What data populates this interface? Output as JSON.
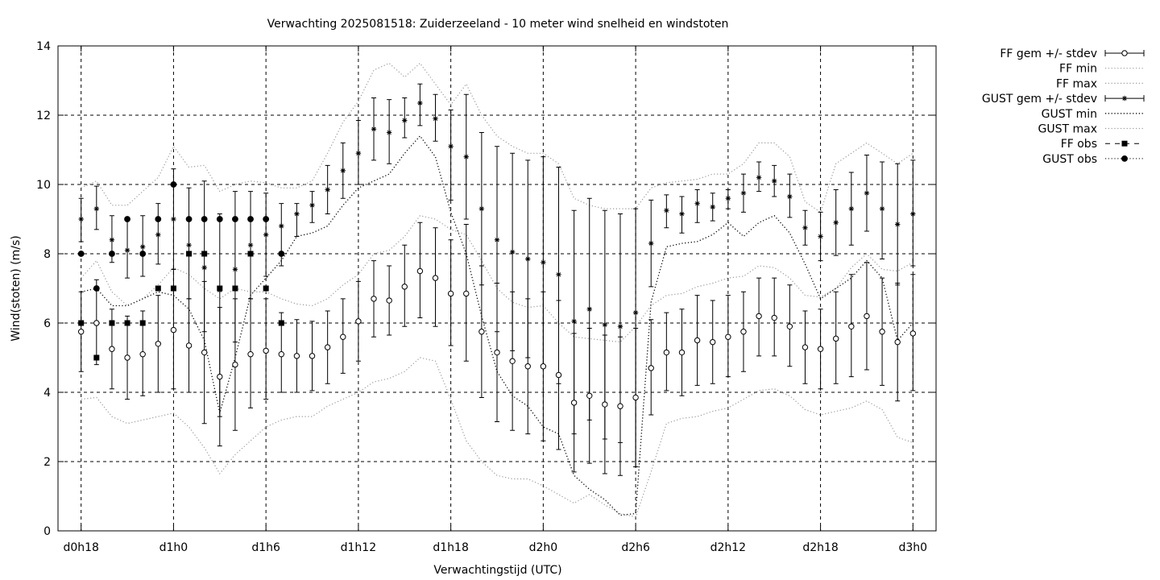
{
  "chart_data": {
    "type": "line",
    "title": "Verwachting 2025081518: Zuiderzeeland - 10 meter wind snelheid en windstoten",
    "xlabel": "Verwachtingstijd (UTC)",
    "ylabel": "Wind(stoten) (m/s)",
    "ylim": [
      0,
      14
    ],
    "yticks": [
      "0",
      "2",
      "4",
      "6",
      "8",
      "10",
      "12",
      "14"
    ],
    "xlim": [
      -1.5,
      55.5
    ],
    "xticks": [
      {
        "x": 0,
        "label": "d0h18"
      },
      {
        "x": 6,
        "label": "d1h0"
      },
      {
        "x": 12,
        "label": "d1h6"
      },
      {
        "x": 18,
        "label": "d1h12"
      },
      {
        "x": 24,
        "label": "d1h18"
      },
      {
        "x": 30,
        "label": "d2h0"
      },
      {
        "x": 36,
        "label": "d2h6"
      },
      {
        "x": 42,
        "label": "d2h12"
      },
      {
        "x": 48,
        "label": "d2h18"
      },
      {
        "x": 54,
        "label": "d3h0"
      }
    ],
    "grid": true,
    "legend_position": "outside-right",
    "legend": [
      "FF gem +/- stdev",
      "FF min",
      "FF max",
      "GUST gem +/- stdev",
      "GUST min",
      "GUST max",
      "FF obs",
      "GUST obs"
    ],
    "series": [
      {
        "key": "ff",
        "type": "errorbar",
        "marker": "circle-open",
        "x": [
          0,
          1,
          2,
          3,
          4,
          5,
          6,
          7,
          8,
          9,
          10,
          11,
          12,
          13,
          14,
          15,
          16,
          17,
          18,
          19,
          20,
          21,
          22,
          23,
          24,
          25,
          26,
          27,
          28,
          29,
          30,
          31,
          32,
          33,
          34,
          35,
          36,
          37,
          38,
          39,
          40,
          41,
          42,
          43,
          44,
          45,
          46,
          47,
          48,
          49,
          50,
          51,
          52,
          53,
          54
        ],
        "mean": [
          5.75,
          6.0,
          5.25,
          5.0,
          5.1,
          5.4,
          5.8,
          5.35,
          5.15,
          4.45,
          4.8,
          5.1,
          5.2,
          5.1,
          5.05,
          5.05,
          5.3,
          5.6,
          6.05,
          6.7,
          6.65,
          7.05,
          7.5,
          7.3,
          6.85,
          6.85,
          5.75,
          5.15,
          4.9,
          4.75,
          4.75,
          4.5,
          3.7,
          3.9,
          3.65,
          3.6,
          3.85,
          4.7,
          5.15,
          5.15,
          5.5,
          5.45,
          5.6,
          5.75,
          6.2,
          6.15,
          5.9,
          5.3,
          5.25,
          5.55,
          5.9,
          6.2,
          5.75,
          5.45,
          5.7
        ],
        "low": [
          4.6,
          4.8,
          4.1,
          3.8,
          3.9,
          4.0,
          4.1,
          4.0,
          3.1,
          2.45,
          2.9,
          3.55,
          3.8,
          4.0,
          4.0,
          4.05,
          4.25,
          4.55,
          4.9,
          5.6,
          5.65,
          5.9,
          6.15,
          5.9,
          5.35,
          4.9,
          3.85,
          3.15,
          2.9,
          2.8,
          2.6,
          2.35,
          1.7,
          1.95,
          1.65,
          1.6,
          1.85,
          3.35,
          4.05,
          3.9,
          4.2,
          4.25,
          4.45,
          4.6,
          5.05,
          5.05,
          4.75,
          4.25,
          4.1,
          4.25,
          4.45,
          4.65,
          4.2,
          3.75,
          4.05
        ],
        "high": [
          6.9,
          7.25,
          6.4,
          6.2,
          6.35,
          6.8,
          7.55,
          6.7,
          7.2,
          6.45,
          6.7,
          6.7,
          6.7,
          6.3,
          6.1,
          6.05,
          6.35,
          6.7,
          7.2,
          7.8,
          7.65,
          8.25,
          8.9,
          8.75,
          8.4,
          8.85,
          7.65,
          7.15,
          6.9,
          6.7,
          6.9,
          6.65,
          5.7,
          5.85,
          5.65,
          5.6,
          5.85,
          6.1,
          6.3,
          6.4,
          6.8,
          6.65,
          6.8,
          6.9,
          7.3,
          7.3,
          7.1,
          6.35,
          6.4,
          6.9,
          7.4,
          7.75,
          7.3,
          7.15,
          7.4
        ]
      },
      {
        "key": "ffmin",
        "type": "line",
        "style": "dotted-grey",
        "x": [
          0,
          1,
          2,
          3,
          4,
          5,
          6,
          7,
          8,
          9,
          10,
          11,
          12,
          13,
          14,
          15,
          16,
          17,
          18,
          19,
          20,
          21,
          22,
          23,
          24,
          25,
          26,
          27,
          28,
          29,
          30,
          31,
          32,
          33,
          34,
          35,
          36,
          37,
          38,
          39,
          40,
          41,
          42,
          43,
          44,
          45,
          46,
          47,
          48,
          49,
          50,
          51,
          52,
          53,
          54
        ],
        "values": [
          3.8,
          3.85,
          3.3,
          3.1,
          3.2,
          3.3,
          3.4,
          3.0,
          2.4,
          1.65,
          2.2,
          2.6,
          3.0,
          3.2,
          3.3,
          3.3,
          3.6,
          3.8,
          4.0,
          4.3,
          4.4,
          4.6,
          5.0,
          4.9,
          3.8,
          2.6,
          2.0,
          1.6,
          1.5,
          1.5,
          1.3,
          1.05,
          0.8,
          1.05,
          0.75,
          0.5,
          0.4,
          1.7,
          3.1,
          3.25,
          3.3,
          3.45,
          3.55,
          3.8,
          4.05,
          4.1,
          3.9,
          3.5,
          3.35,
          3.45,
          3.55,
          3.75,
          3.5,
          2.7,
          2.55
        ]
      },
      {
        "key": "ffmax",
        "type": "line",
        "style": "dotted-grey",
        "x": [
          0,
          1,
          2,
          3,
          4,
          5,
          6,
          7,
          8,
          9,
          10,
          11,
          12,
          13,
          14,
          15,
          16,
          17,
          18,
          19,
          20,
          21,
          22,
          23,
          24,
          25,
          26,
          27,
          28,
          29,
          30,
          31,
          32,
          33,
          34,
          35,
          36,
          37,
          38,
          39,
          40,
          41,
          42,
          43,
          44,
          45,
          46,
          47,
          48,
          49,
          50,
          51,
          52,
          53,
          54
        ],
        "values": [
          7.3,
          7.8,
          6.9,
          6.5,
          6.7,
          7.1,
          7.6,
          7.4,
          7.0,
          6.7,
          7.0,
          6.9,
          6.9,
          6.7,
          6.55,
          6.5,
          6.7,
          7.1,
          7.4,
          8.0,
          8.1,
          8.5,
          9.1,
          9.0,
          8.7,
          8.55,
          7.8,
          7.0,
          6.6,
          6.45,
          6.5,
          6.0,
          5.6,
          5.55,
          5.5,
          5.45,
          5.9,
          6.5,
          6.8,
          6.85,
          7.05,
          7.15,
          7.3,
          7.35,
          7.65,
          7.6,
          7.3,
          6.8,
          6.75,
          7.0,
          7.6,
          8.0,
          7.55,
          7.5,
          7.75
        ]
      },
      {
        "key": "gust",
        "type": "errorbar",
        "marker": "star",
        "x": [
          0,
          1,
          2,
          3,
          4,
          5,
          6,
          7,
          8,
          9,
          10,
          11,
          12,
          13,
          14,
          15,
          16,
          17,
          18,
          19,
          20,
          21,
          22,
          23,
          24,
          25,
          26,
          27,
          28,
          29,
          30,
          31,
          32,
          33,
          34,
          35,
          36,
          37,
          38,
          39,
          40,
          41,
          42,
          43,
          44,
          45,
          46,
          47,
          48,
          49,
          50,
          51,
          52,
          53,
          54
        ],
        "mean": [
          9.0,
          9.3,
          8.4,
          8.1,
          8.2,
          8.55,
          9.0,
          8.25,
          7.6,
          6.95,
          7.55,
          8.25,
          8.55,
          8.8,
          9.15,
          9.4,
          9.85,
          10.4,
          10.9,
          11.6,
          11.5,
          11.85,
          12.35,
          11.9,
          11.1,
          10.8,
          9.3,
          8.4,
          8.05,
          7.85,
          7.75,
          7.4,
          6.05,
          6.4,
          5.95,
          5.9,
          6.3,
          8.3,
          9.25,
          9.15,
          9.45,
          9.35,
          9.6,
          9.75,
          10.2,
          10.1,
          9.65,
          8.75,
          8.5,
          8.9,
          9.3,
          9.75,
          9.3,
          8.85,
          9.15
        ],
        "low": [
          8.35,
          8.7,
          7.75,
          7.3,
          7.35,
          7.7,
          7.55,
          6.7,
          5.75,
          3.3,
          5.45,
          6.7,
          7.35,
          7.65,
          8.5,
          8.9,
          9.15,
          9.6,
          10.0,
          10.7,
          10.6,
          11.35,
          11.7,
          11.25,
          9.55,
          9.0,
          7.1,
          5.75,
          5.2,
          5.0,
          4.7,
          4.25,
          2.8,
          3.2,
          2.65,
          2.55,
          1.85,
          7.05,
          8.75,
          8.6,
          8.9,
          8.95,
          9.3,
          9.2,
          9.8,
          9.65,
          9.05,
          8.25,
          7.8,
          7.95,
          8.25,
          8.65,
          7.85,
          7.1,
          7.65
        ],
        "high": [
          9.6,
          9.95,
          9.1,
          8.95,
          9.1,
          9.45,
          10.45,
          9.9,
          10.1,
          9.15,
          9.8,
          9.8,
          9.75,
          9.45,
          9.45,
          9.8,
          10.55,
          11.2,
          11.85,
          12.5,
          12.45,
          12.5,
          12.9,
          12.6,
          12.15,
          12.6,
          11.5,
          11.1,
          10.9,
          10.7,
          10.8,
          10.5,
          9.25,
          9.6,
          9.25,
          9.15,
          9.3,
          9.55,
          9.7,
          9.65,
          9.85,
          9.75,
          9.85,
          10.3,
          10.65,
          10.55,
          10.3,
          9.25,
          9.2,
          9.85,
          10.35,
          10.85,
          10.65,
          10.6,
          10.7
        ]
      },
      {
        "key": "gustmin",
        "type": "line",
        "style": "dotted-black",
        "x": [
          0,
          1,
          2,
          3,
          4,
          5,
          6,
          7,
          8,
          9,
          10,
          11,
          12,
          13,
          14,
          15,
          16,
          17,
          18,
          19,
          20,
          21,
          22,
          23,
          24,
          25,
          26,
          27,
          28,
          29,
          30,
          31,
          32,
          33,
          34,
          35,
          36,
          37,
          38,
          39,
          40,
          41,
          42,
          43,
          44,
          45,
          46,
          47,
          48,
          49,
          50,
          51,
          52,
          53,
          54
        ],
        "values": [
          6.9,
          7.0,
          6.5,
          6.5,
          6.7,
          6.9,
          6.8,
          6.4,
          5.5,
          3.4,
          5.0,
          6.8,
          7.3,
          7.8,
          8.5,
          8.6,
          8.8,
          9.4,
          9.9,
          10.1,
          10.3,
          10.9,
          11.4,
          10.8,
          9.2,
          8.0,
          6.2,
          4.6,
          3.9,
          3.6,
          3.0,
          2.8,
          1.6,
          1.2,
          0.9,
          0.45,
          0.5,
          6.6,
          8.2,
          8.3,
          8.35,
          8.55,
          8.9,
          8.5,
          8.9,
          9.1,
          8.6,
          7.7,
          6.7,
          7.0,
          7.3,
          7.8,
          7.3,
          5.5,
          6.0
        ]
      },
      {
        "key": "gustmax",
        "type": "line",
        "style": "dotted-grey",
        "x": [
          0,
          1,
          2,
          3,
          4,
          5,
          6,
          7,
          8,
          9,
          10,
          11,
          12,
          13,
          14,
          15,
          16,
          17,
          18,
          19,
          20,
          21,
          22,
          23,
          24,
          25,
          26,
          27,
          28,
          29,
          30,
          31,
          32,
          33,
          34,
          35,
          36,
          37,
          38,
          39,
          40,
          41,
          42,
          43,
          44,
          45,
          46,
          47,
          48,
          49,
          50,
          51,
          52,
          53,
          54
        ],
        "values": [
          9.9,
          10.1,
          9.4,
          9.4,
          9.8,
          10.2,
          11.1,
          10.5,
          10.55,
          9.8,
          10.0,
          10.1,
          10.05,
          9.9,
          9.9,
          10.1,
          10.9,
          11.8,
          12.4,
          13.3,
          13.5,
          13.1,
          13.5,
          12.9,
          12.3,
          12.9,
          12.0,
          11.4,
          11.1,
          10.9,
          10.9,
          10.6,
          9.6,
          9.4,
          9.3,
          9.3,
          9.3,
          9.9,
          10.05,
          10.1,
          10.15,
          10.3,
          10.3,
          10.6,
          11.2,
          11.2,
          10.8,
          9.5,
          9.2,
          10.6,
          10.9,
          11.2,
          10.9,
          10.6,
          10.9
        ]
      },
      {
        "key": "ffobs",
        "type": "points",
        "marker": "square-filled",
        "x": [
          0,
          1,
          2,
          3,
          4,
          5,
          6,
          7,
          8,
          9,
          10,
          11,
          12,
          13
        ],
        "values": [
          6,
          5,
          6,
          6,
          6,
          7,
          7,
          8,
          8,
          7,
          7,
          8,
          7,
          6
        ]
      },
      {
        "key": "gustobs",
        "type": "points",
        "marker": "circle-filled",
        "x": [
          0,
          1,
          2,
          3,
          4,
          5,
          6,
          7,
          8,
          9,
          10,
          11,
          12,
          13
        ],
        "values": [
          8,
          7,
          8,
          9,
          8,
          9,
          10,
          9,
          9,
          9,
          9,
          9,
          9,
          8
        ]
      }
    ]
  }
}
